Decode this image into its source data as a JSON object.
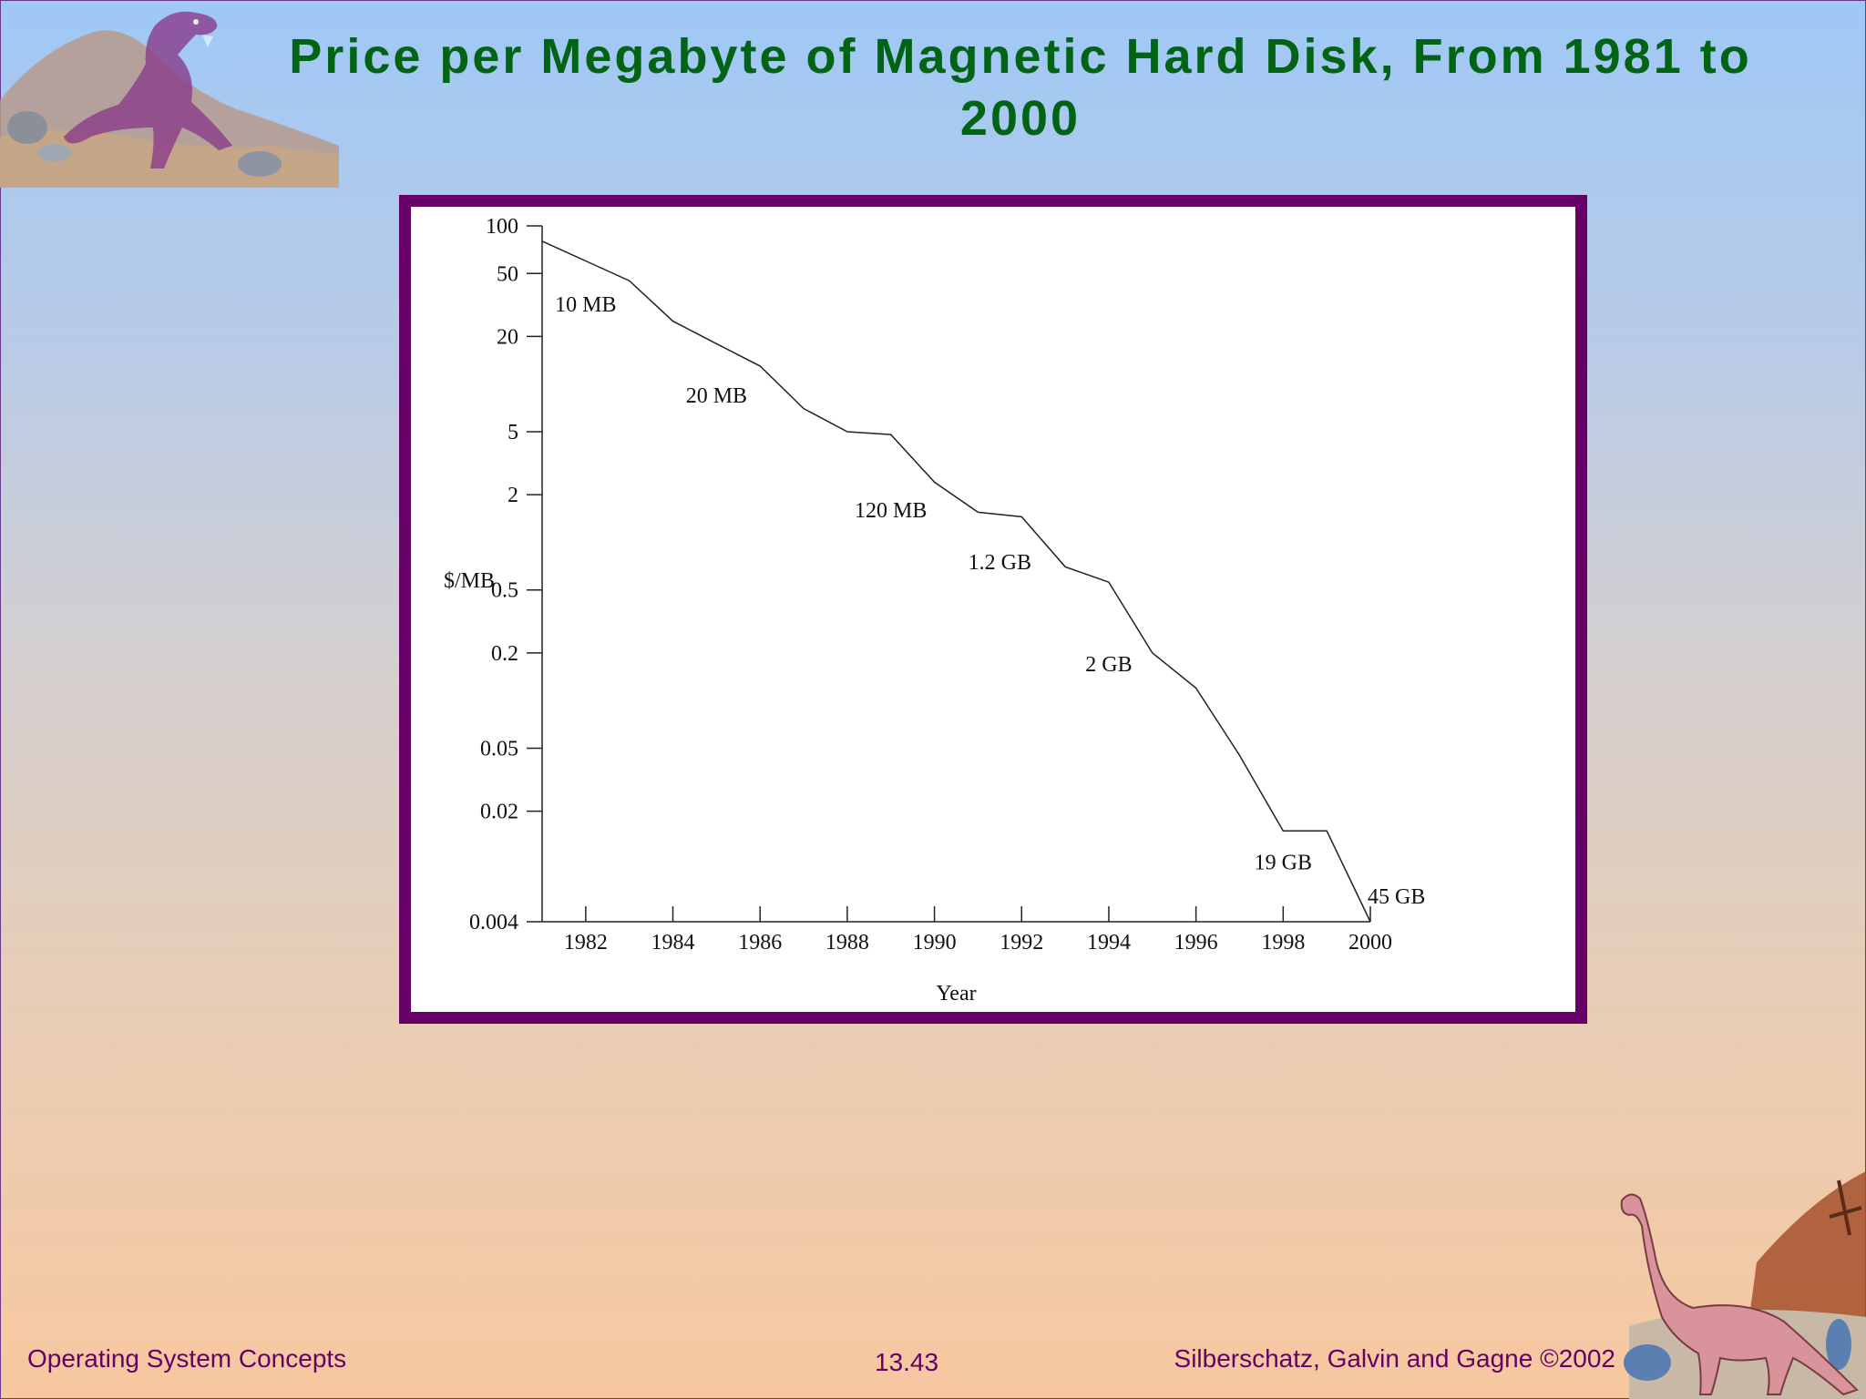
{
  "slide": {
    "title": "Price per Megabyte of Magnetic Hard Disk, From 1981 to 2000",
    "footer_left": "Operating System Concepts",
    "footer_center": "13.43",
    "footer_right": "Silberschatz, Galvin and  Gagne ©2002"
  },
  "colors": {
    "title": "#006414",
    "frame": "#660066",
    "footer_text": "#660066"
  },
  "icons": [
    "tyrannosaurus-icon",
    "brontosaurus-icon"
  ],
  "chart_data": {
    "type": "line",
    "title": "",
    "xlabel": "Year",
    "ylabel": "$/MB",
    "yscale": "log",
    "xlim": [
      1981,
      2000
    ],
    "ylim": [
      0.004,
      100
    ],
    "x_ticks": [
      1982,
      1984,
      1986,
      1988,
      1990,
      1992,
      1994,
      1996,
      1998,
      2000
    ],
    "y_ticks": [
      100,
      50,
      20,
      5,
      2,
      0.5,
      0.2,
      0.05,
      0.02,
      0.004
    ],
    "y_tick_labels": [
      "100",
      "50",
      "20",
      "5",
      "2",
      "0.5",
      "0.2",
      "0.05",
      "0.02",
      "0.004"
    ],
    "grid": false,
    "series": [
      {
        "x": [
          1981,
          1982,
          1983,
          1984,
          1985,
          1986,
          1987,
          1988,
          1989,
          1990,
          1991,
          1992,
          1993,
          1994,
          1995,
          1996,
          1997,
          1998,
          1999,
          2000
        ],
        "y": [
          80,
          60,
          45,
          25,
          18,
          13,
          7,
          5,
          4.8,
          2.4,
          1.55,
          1.45,
          0.7,
          0.56,
          0.2,
          0.12,
          0.045,
          0.015,
          0.015,
          0.004
        ]
      }
    ],
    "annotations": [
      {
        "text": "10 MB",
        "x": 1982,
        "y": 32
      },
      {
        "text": "20 MB",
        "x": 1985,
        "y": 8.5
      },
      {
        "text": "120 MB",
        "x": 1989,
        "y": 1.6
      },
      {
        "text": "1.2 GB",
        "x": 1991.5,
        "y": 0.75
      },
      {
        "text": "2 GB",
        "x": 1994,
        "y": 0.17
      },
      {
        "text": "19 GB",
        "x": 1998,
        "y": 0.0095
      },
      {
        "text": "45 GB",
        "x": 2000.6,
        "y": 0.0058
      }
    ]
  }
}
